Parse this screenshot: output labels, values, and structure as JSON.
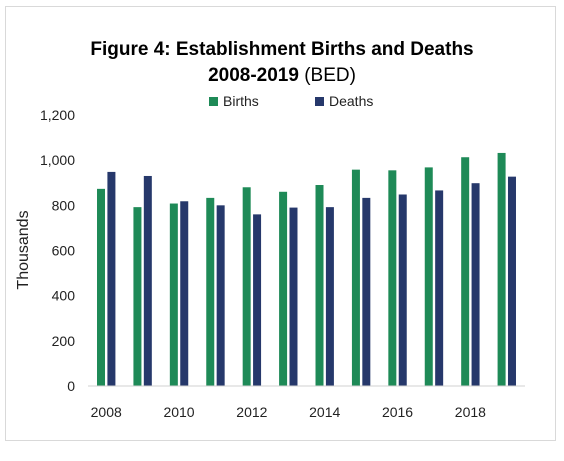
{
  "chart_data": {
    "type": "bar",
    "title_bold_line1": "Figure 4: Establishment Births and Deaths",
    "title_bold_line2": "2008-2019",
    "title_suffix": " (BED)",
    "xlabel": "",
    "ylabel": "Thousands",
    "ylim": [
      0,
      1200
    ],
    "yticks": [
      0,
      200,
      400,
      600,
      800,
      1000,
      1200
    ],
    "ytick_labels": [
      "0",
      "200",
      "400",
      "600",
      "800",
      "1,000",
      "1,200"
    ],
    "categories": [
      "2008",
      "2009",
      "2010",
      "2011",
      "2012",
      "2013",
      "2014",
      "2015",
      "2016",
      "2017",
      "2018",
      "2019"
    ],
    "xtick_labels": [
      "2008",
      "",
      "2010",
      "",
      "2012",
      "",
      "2014",
      "",
      "2016",
      "",
      "2018",
      ""
    ],
    "series": [
      {
        "name": "Births",
        "color": "#1e8a57",
        "values": [
          873,
          792,
          808,
          833,
          880,
          860,
          890,
          958,
          955,
          968,
          1013,
          1032
        ]
      },
      {
        "name": "Deaths",
        "color": "#26386b",
        "values": [
          948,
          930,
          818,
          800,
          760,
          790,
          792,
          833,
          848,
          866,
          898,
          927
        ]
      }
    ],
    "legend_position": "top-center",
    "grid": false
  }
}
